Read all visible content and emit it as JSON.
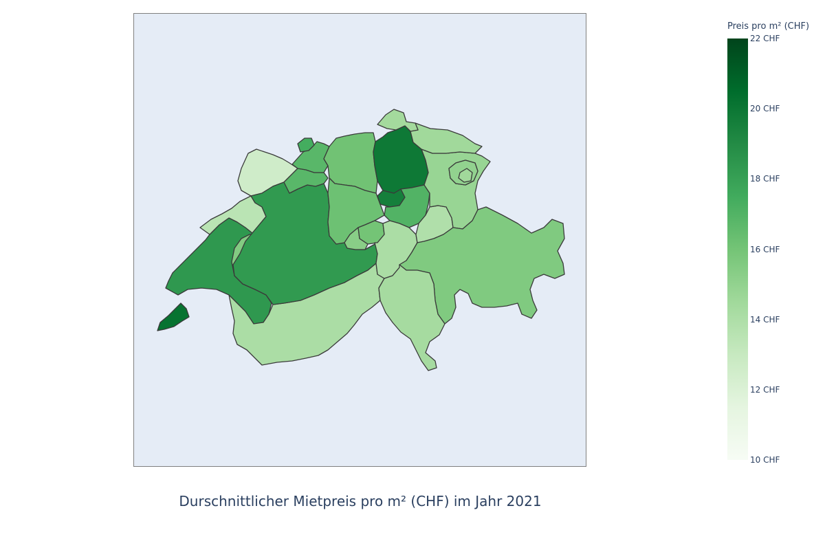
{
  "chart_data": {
    "type": "choropleth",
    "title": "Durschnittlicher Mietpreis pro m² (CHF) im Jahr 2021",
    "colorbar": {
      "title": "Preis pro m² (CHF)",
      "min": 10,
      "max": 22,
      "colorscale": "Greens",
      "ticks": [
        {
          "value": 22,
          "label": "22 CHF"
        },
        {
          "value": 20,
          "label": "20 CHF"
        },
        {
          "value": 18,
          "label": "18 CHF"
        },
        {
          "value": 16,
          "label": "16 CHF"
        },
        {
          "value": 14,
          "label": "14 CHF"
        },
        {
          "value": 12,
          "label": "12 CHF"
        },
        {
          "value": 10,
          "label": "10 CHF"
        }
      ]
    },
    "regions": [
      {
        "id": "GE",
        "value": 20.2
      },
      {
        "id": "VD",
        "value": 18.4
      },
      {
        "id": "VS",
        "value": 14.1
      },
      {
        "id": "FR",
        "value": 15.5
      },
      {
        "id": "NE",
        "value": 13.5
      },
      {
        "id": "JU",
        "value": 12.6
      },
      {
        "id": "BE",
        "value": 18.3
      },
      {
        "id": "SO",
        "value": 16.8
      },
      {
        "id": "BL",
        "value": 16.8
      },
      {
        "id": "BS",
        "value": 17.4
      },
      {
        "id": "AG",
        "value": 16.1
      },
      {
        "id": "LU",
        "value": 16.2
      },
      {
        "id": "ZG",
        "value": 19.6
      },
      {
        "id": "ZH",
        "value": 19.9
      },
      {
        "id": "SZ",
        "value": 17.0
      },
      {
        "id": "OW",
        "value": 15.3
      },
      {
        "id": "NW",
        "value": 16.0
      },
      {
        "id": "UR",
        "value": 14.1
      },
      {
        "id": "GL",
        "value": 13.9
      },
      {
        "id": "SG",
        "value": 14.8
      },
      {
        "id": "AR",
        "value": 15.0
      },
      {
        "id": "AI",
        "value": 14.5
      },
      {
        "id": "TG",
        "value": 14.5
      },
      {
        "id": "SH",
        "value": 14.4
      },
      {
        "id": "GR",
        "value": 15.6
      },
      {
        "id": "TI",
        "value": 14.3
      }
    ]
  }
}
